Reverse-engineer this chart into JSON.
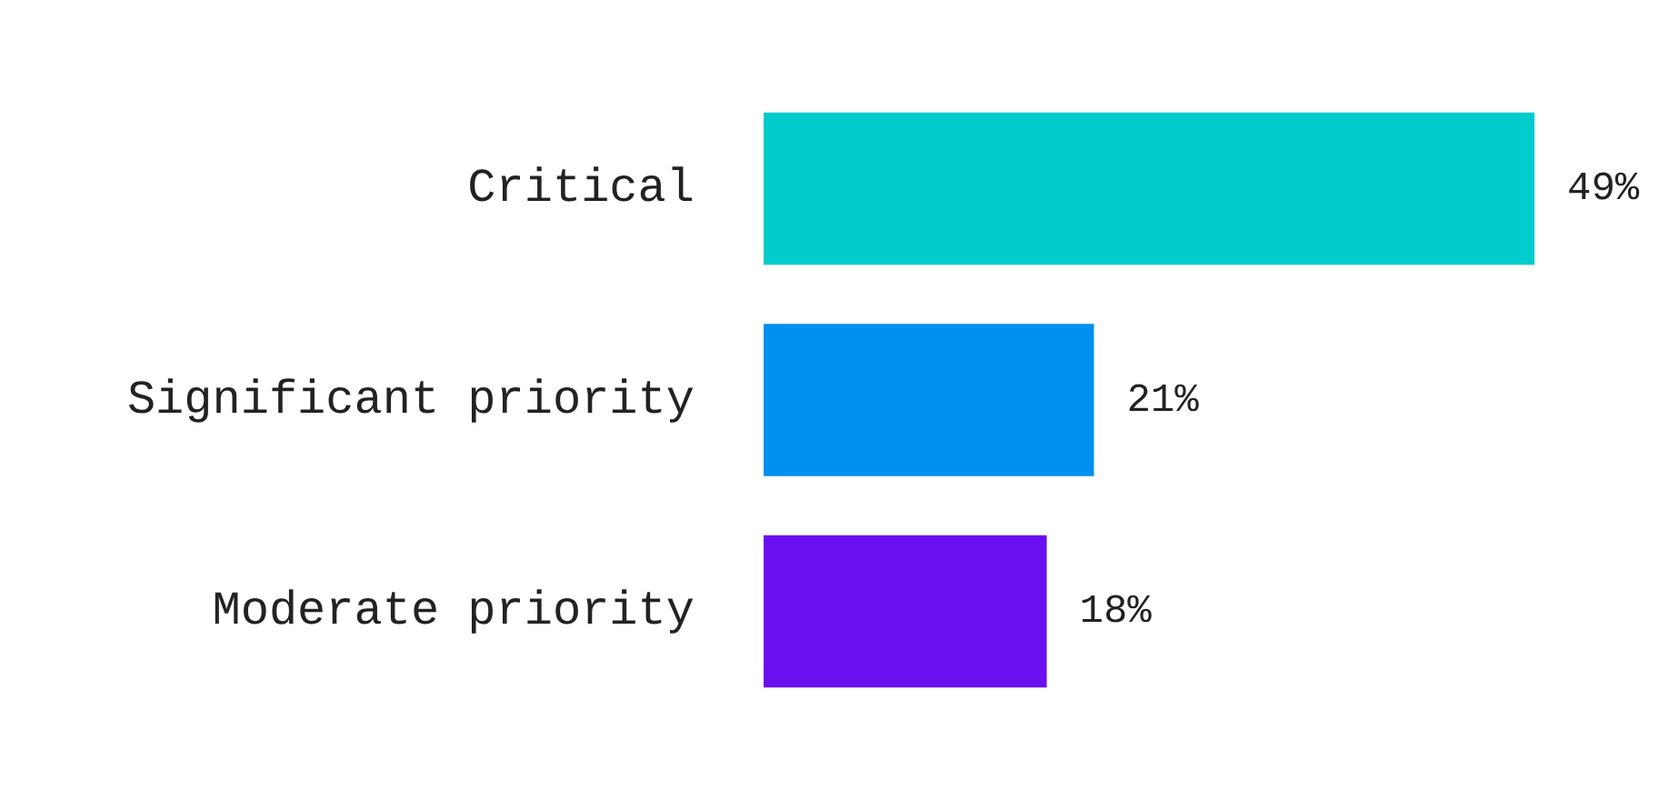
{
  "chart_data": {
    "type": "bar",
    "orientation": "horizontal",
    "categories": [
      "Critical",
      "Significant priority",
      "Moderate priority"
    ],
    "values": [
      49,
      21,
      18
    ],
    "colors": [
      "#00cccc",
      "#0090f0",
      "#6a10f0"
    ],
    "value_labels": [
      "49%",
      "21%",
      "18%"
    ],
    "grid": false,
    "legend": false
  }
}
